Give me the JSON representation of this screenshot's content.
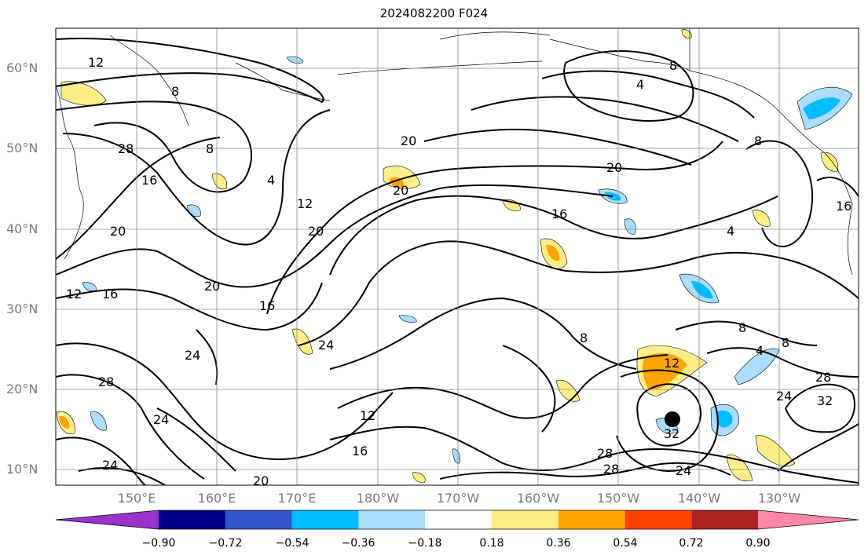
{
  "title": "2024082200 F024",
  "latitude_labels": [
    "60°N",
    "50°N",
    "40°N",
    "30°N",
    "20°N",
    "10°N"
  ],
  "longitude_labels": [
    "150°E",
    "160°E",
    "170°E",
    "180°W",
    "170°W",
    "160°W",
    "150°W",
    "140°W",
    "130°W"
  ],
  "contour_labels": [
    "4",
    "8",
    "12",
    "16",
    "20",
    "24",
    "28",
    "32"
  ],
  "colorbar": {
    "tick_labels": [
      "−0.90",
      "−0.72",
      "−0.54",
      "−0.36",
      "−0.18",
      "0.18",
      "0.36",
      "0.54",
      "0.72",
      "0.90"
    ],
    "colors": [
      "#9933cc",
      "#000088",
      "#3355cc",
      "#00bbff",
      "#aaddff",
      "#ffffff",
      "#ffee88",
      "#ffa500",
      "#ff4400",
      "#aa2222",
      "#ff88aa"
    ]
  },
  "marker": "filled-circle"
}
